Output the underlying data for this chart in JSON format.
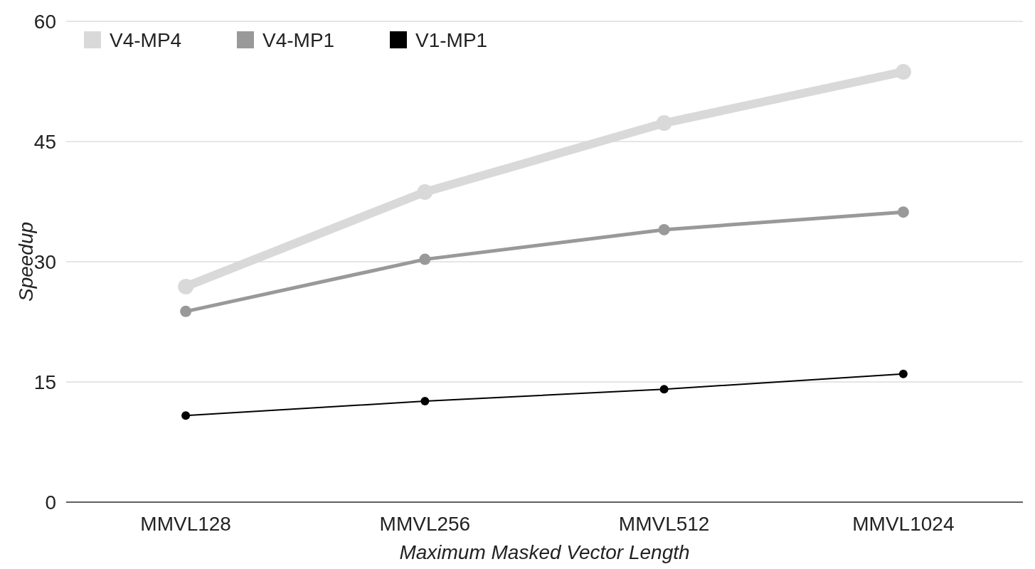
{
  "chart_data": {
    "type": "line",
    "xlabel": "Maximum Masked Vector Length",
    "ylabel": "Speedup",
    "categories": [
      "MMVL128",
      "MMVL256",
      "MMVL512",
      "MMVL1024"
    ],
    "series": [
      {
        "name": "V4-MP4",
        "color": "#d9d9d9",
        "values": [
          26.9,
          38.7,
          47.3,
          53.7
        ]
      },
      {
        "name": "V4-MP1",
        "color": "#999999",
        "values": [
          23.8,
          30.3,
          34,
          36.2
        ]
      },
      {
        "name": "V1-MP1",
        "color": "#000000",
        "values": [
          10.8,
          12.6,
          14.1,
          16
        ]
      }
    ],
    "ylim": [
      0,
      60
    ],
    "yticks": [
      0,
      15,
      30,
      45,
      60
    ],
    "grid": "y",
    "legend": "top left",
    "marker": "circle",
    "line_style": "solid"
  }
}
